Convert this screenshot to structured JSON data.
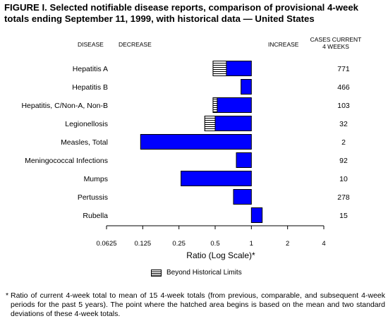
{
  "title": "FIGURE I. Selected notifiable disease reports, comparison of provisional 4-week totals ending September 11, 1999, with historical data — United States",
  "headers": {
    "disease": "DISEASE",
    "decrease": "DECREASE",
    "increase": "INCREASE",
    "cases_line1": "CASES CURRENT",
    "cases_line2": "4 WEEKS"
  },
  "legend": {
    "label": "Beyond Historical Limits"
  },
  "footnote": {
    "mark": "*",
    "text": "Ratio of current 4-week total to mean of 15 4-week totals (from previous, comparable, and subsequent 4-week periods for the past 5 years). The point where the hatched area begins is based on the mean and two standard deviations of these 4-week totals."
  },
  "colors": {
    "bar": "#0000ff",
    "hatch": "#000000",
    "background": "#ffffff"
  },
  "chart_data": {
    "type": "bar",
    "orientation": "horizontal",
    "xscale": "log2",
    "xlabel": "Ratio (Log Scale)*",
    "xlim": [
      0.0625,
      4
    ],
    "xticks": [
      0.0625,
      0.125,
      0.25,
      0.5,
      1,
      2,
      4
    ],
    "xtick_labels": [
      "0.0625",
      "0.125",
      "0.25",
      "0.5",
      "1",
      "2",
      "4"
    ],
    "categories": [
      "Hepatitis A",
      "Hepatitis B",
      "Hepatitis, C/Non-A, Non-B",
      "Legionellosis",
      "Measles, Total",
      "Meningococcal Infections",
      "Mumps",
      "Pertussis",
      "Rubella"
    ],
    "ratios": [
      0.48,
      0.82,
      0.48,
      0.41,
      0.12,
      0.75,
      0.26,
      0.71,
      1.23
    ],
    "historical_limits": [
      0.62,
      null,
      0.52,
      0.5,
      null,
      null,
      null,
      null,
      null
    ],
    "cases_current_4_weeks": [
      "771",
      "466",
      "103",
      "32",
      "2",
      "92",
      "10",
      "278",
      "15"
    ]
  }
}
